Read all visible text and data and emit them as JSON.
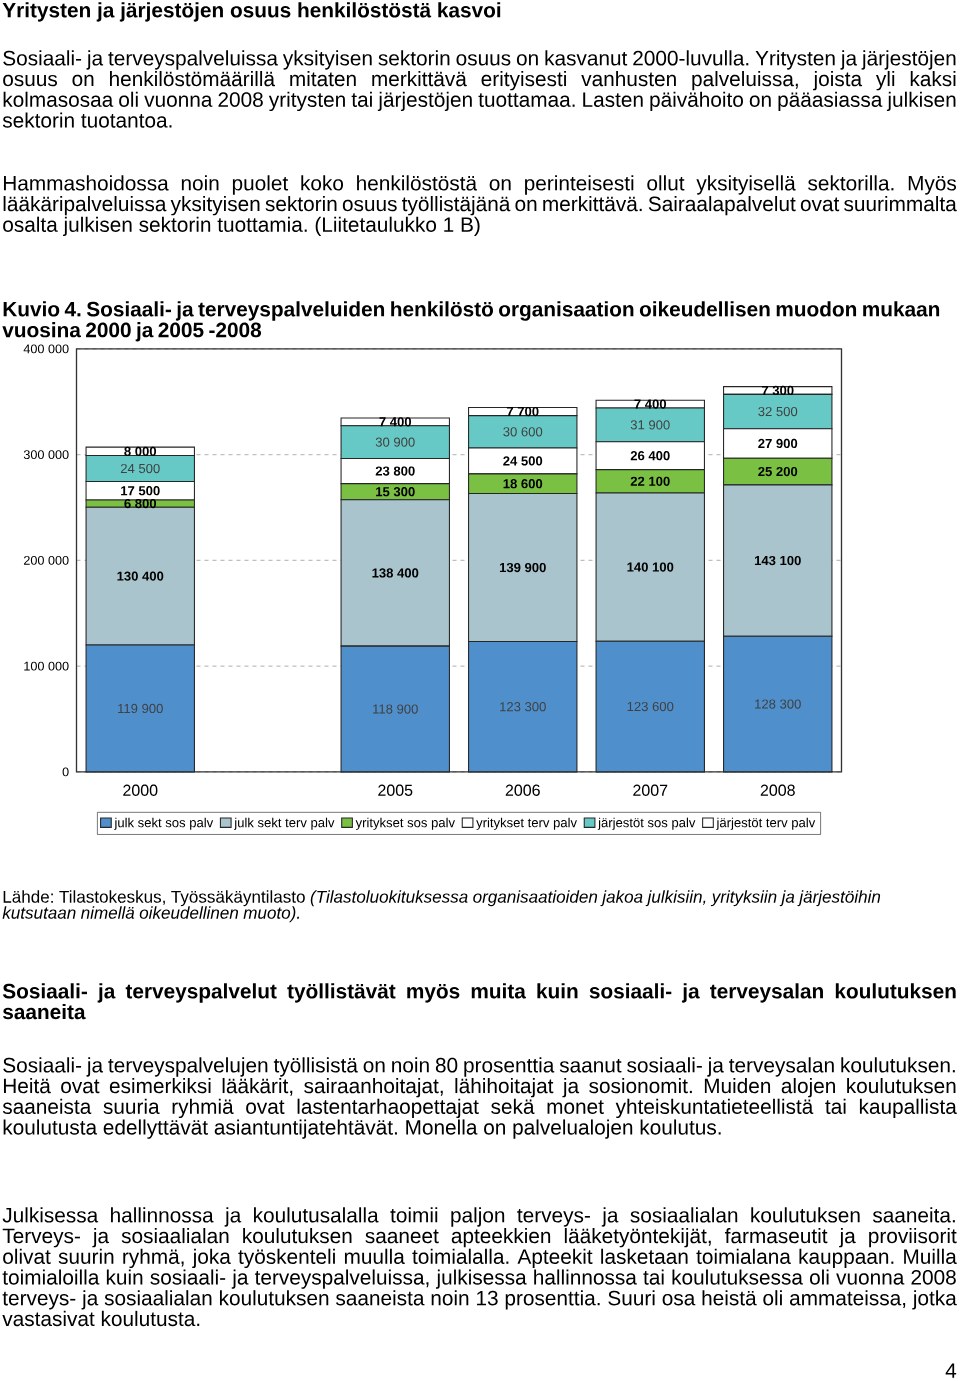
{
  "chart_data": {
    "type": "bar",
    "stacked": true,
    "title": "Kuvio 4. Sosiaali- ja terveyspalveluiden henkilöstö organisaation oikeudellisen muodon mukaan vuosina 2000 ja 2005 -2008",
    "categories": [
      "2000",
      null,
      "2005",
      "2006",
      "2007",
      "2008"
    ],
    "series": [
      {
        "name": "julk sekt sos palv",
        "color": "#4f8fcc",
        "values": [
          119900,
          null,
          118900,
          123300,
          123600,
          128300
        ],
        "value_labels": [
          "119 900",
          null,
          "118 900",
          "123 300",
          "123 600",
          "128 300"
        ]
      },
      {
        "name": "julk sekt terv palv",
        "color": "#a9c4cc",
        "values": [
          130400,
          null,
          138400,
          139900,
          140100,
          143100
        ],
        "value_labels": [
          "130 400",
          null,
          "138 400",
          "139 900",
          "140 100",
          "143 100"
        ]
      },
      {
        "name": "yritykset sos palv",
        "color": "#7ac143",
        "values": [
          6800,
          null,
          15300,
          18600,
          22100,
          25200
        ],
        "value_labels": [
          "6 800",
          null,
          "15 300",
          "18 600",
          "22 100",
          "25 200"
        ]
      },
      {
        "name": "yritykset terv palv",
        "color": "#ffffff",
        "values": [
          17500,
          null,
          23800,
          24500,
          26400,
          27900
        ],
        "value_labels": [
          "17 500",
          null,
          "23 800",
          "24 500",
          "26 400",
          "27 900"
        ]
      },
      {
        "name": "järjestöt sos palv",
        "color": "#66c9c6",
        "values": [
          24500,
          null,
          30900,
          30600,
          31900,
          32500
        ],
        "value_labels": [
          "24 500",
          null,
          "30 900",
          "30 600",
          "31 900",
          "32 500"
        ]
      },
      {
        "name": "järjestöt terv palv",
        "color": "#ffffff",
        "values": [
          8000,
          null,
          7400,
          7700,
          7400,
          7300
        ],
        "value_labels": [
          "8 000",
          null,
          "7 400",
          "7 700",
          "7 400",
          "7 300"
        ]
      }
    ],
    "ylim": [
      0,
      400000
    ],
    "yticks": [
      0,
      {
        "value": 100000,
        "label": "100 000"
      },
      {
        "value": 200000,
        "label": "200 000"
      },
      {
        "value": 300000,
        "label": "300 000"
      },
      {
        "value": 400000,
        "label": "400 000"
      }
    ],
    "grid": "y",
    "legend": "bottom",
    "annotations": [
      "Yritysten ja järjestöjen osuus henkilöstöstä kasvoi",
      "Sosiaali- ja terveyspalveluissa yksityisen sektorin osuus on kasvanut 2000-luvulla. Yritysten ja järjestöjen osuus on henkilöstömäärillä mitaten merkittävä erityisesti vanhusten palveluissa, joista yli kaksi kolmasosaa oli vuonna 2008 yritysten tai järjestöjen tuottamaa. Lasten päivähoito on pääasiassa julkisen sektorin tuotantoa.",
      "Hammashoidossa noin puolet koko henkilöstöstä on perinteisesti ollut yksityisellä sektorilla. Myös lääkäripalveluissa yksityisen sektorin osuus työllistäjänä on merkittävä. Sairaalapalvelut ovat suurimmalta osalta julkisen sektorin tuottamia. (Liitetaulukko 1 B)",
      "Lähde: Tilastokeskus, Työssäkäyntilasto *(Tilastoluokituksessa organisaatioiden jakoa julkisiin, yrityksiin ja järjestöihin kutsutaan nimellä oikeudellinen muoto).*",
      "Sosiaali- ja terveyspalvelut työllistävät myös muita kuin sosiaali- ja terveysalan koulutuksen saaneita",
      "Sosiaali- ja terveyspalvelujen työllisistä on noin 80 prosenttia saanut sosiaali- ja terveysalan koulutuksen. Heitä ovat esimerkiksi lääkärit, sairaanhoitajat, lähihoitajat ja sosionomit. Muiden alojen koulutuksen saaneista suuria ryhmiä ovat lastentarhaopettajat sekä monet yhteiskuntatieteellistä tai kaupallista koulutusta edellyttävät asiantuntijatehtävät. Monella on palvelualojen koulutus.",
      "Julkisessa hallinnossa ja koulutusalalla toimii paljon terveys- ja sosiaalialan koulutuksen saaneita. Terveys- ja sosiaalialan koulutuksen saaneet apteekkien lääketyöntekijät, farmaseutit ja proviisorit olivat suurin ryhmä, joka työskenteli muulla toimialalla. Apteekit lasketaan toimialana kauppaan. Muilla toimialoilla kuin sosiaali- ja terveyspalveluissa, julkisessa hallinnossa tai koulutuksessa oli vuonna 2008 terveys- ja sosiaalialan koulutuksen saaneista noin 13 prosenttia. Suuri osa heistä oli ammateissa, jotka vastasivat koulutusta.",
      "4"
    ]
  }
}
